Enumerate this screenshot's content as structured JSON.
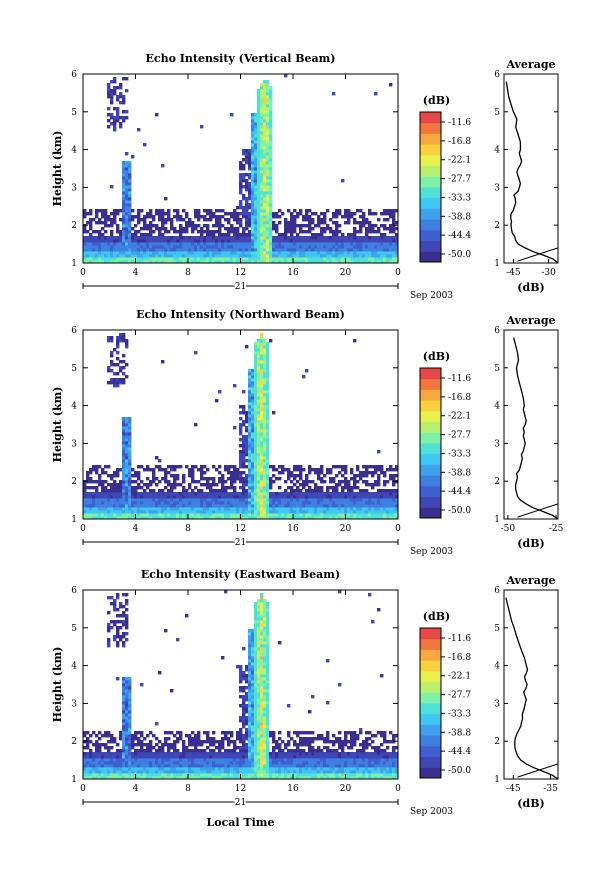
{
  "figure": {
    "date_label": "Sep 2003",
    "day_label": "21",
    "xlabel": "Local Time",
    "ylabel": "Height (km)",
    "colorbar_unit": "(dB)",
    "avg_title": "Average",
    "avg_xlabel": "(dB)"
  },
  "colorbar": {
    "ticks": [
      "-11.6",
      "-16.8",
      "-22.1",
      "-27.7",
      "-33.3",
      "-38.8",
      "-44.4",
      "-50.0"
    ],
    "colors": [
      "#3a2f8f",
      "#3f47b5",
      "#3f5fd0",
      "#3f7fe0",
      "#3fa0ee",
      "#3fc6f2",
      "#4fe0d8",
      "#7ff0a8",
      "#b8f070",
      "#e8f050",
      "#f8d040",
      "#f8a840",
      "#f07840",
      "#e84848"
    ]
  },
  "chart_data": [
    {
      "type": "heatmap",
      "title": "Echo Intensity (Vertical Beam)",
      "xlabel": "Local Time",
      "ylabel": "Height (km)",
      "xlim": [
        0,
        24
      ],
      "ylim": [
        1,
        6
      ],
      "xticks": [
        "0",
        "4",
        "8",
        "12",
        "16",
        "20",
        "0"
      ],
      "yticks": [
        "1",
        "2",
        "3",
        "4",
        "5",
        "6"
      ],
      "colorbar_label": "(dB)",
      "color_range": [
        -50.0,
        -11.6
      ],
      "features": [
        {
          "t": [
            0,
            24
          ],
          "h": [
            1.0,
            1.6
          ],
          "dB": -40
        },
        {
          "t": [
            2,
            3.5
          ],
          "h": [
            1.0,
            5.9
          ],
          "dB": -48
        },
        {
          "t": [
            12.5,
            14.6
          ],
          "h": [
            1.0,
            5.9
          ],
          "dB": -30
        }
      ],
      "average": {
        "title": "Average",
        "xlabel": "(dB)",
        "xticks": [
          "-45",
          "-30"
        ],
        "xlim": [
          -49,
          -26
        ],
        "yticks": [
          "1",
          "2",
          "3",
          "4",
          "5",
          "6"
        ],
        "ylim": [
          1,
          6
        ],
        "height_km": [
          1.0,
          1.1,
          1.2,
          1.3,
          1.4,
          1.5,
          1.6,
          1.7,
          1.8,
          1.9,
          2.0,
          2.1,
          2.2,
          2.3,
          2.4,
          2.5,
          2.6,
          2.7,
          2.8,
          2.9,
          3.0,
          3.1,
          3.2,
          3.3,
          3.4,
          3.5,
          3.6,
          3.7,
          3.8,
          3.9,
          4.0,
          4.2,
          4.4,
          4.6,
          4.8,
          5.0,
          5.2,
          5.4,
          5.6,
          5.8
        ],
        "intensity_db": [
          -26.0,
          -28.0,
          -32.0,
          -36.5,
          -40.0,
          -43.0,
          -44.0,
          -44.5,
          -45.5,
          -45.8,
          -46.0,
          -45.8,
          -46.2,
          -46.0,
          -45.0,
          -44.5,
          -44.0,
          -44.2,
          -44.8,
          -43.0,
          -42.5,
          -42.0,
          -42.5,
          -43.0,
          -43.5,
          -43.0,
          -42.0,
          -41.5,
          -42.0,
          -42.5,
          -42.0,
          -42.0,
          -43.0,
          -44.0,
          -43.5,
          -45.0,
          -46.0,
          -47.0,
          -47.5,
          -48.0
        ]
      }
    },
    {
      "type": "heatmap",
      "title": "Echo Intensity (Northward Beam)",
      "xlabel": "Local Time",
      "ylabel": "Height (km)",
      "xlim": [
        0,
        24
      ],
      "ylim": [
        1,
        6
      ],
      "xticks": [
        "0",
        "4",
        "8",
        "12",
        "16",
        "20",
        "0"
      ],
      "yticks": [
        "1",
        "2",
        "3",
        "4",
        "5",
        "6"
      ],
      "colorbar_label": "(dB)",
      "color_range": [
        -50.0,
        -11.6
      ],
      "features": [
        {
          "t": [
            0,
            24
          ],
          "h": [
            1.0,
            1.6
          ],
          "dB": -40
        },
        {
          "t": [
            2,
            3.5
          ],
          "h": [
            1.0,
            5.8
          ],
          "dB": -48
        },
        {
          "t": [
            13,
            14.8
          ],
          "h": [
            1.0,
            5.7
          ],
          "dB": -30
        }
      ],
      "average": {
        "title": "Average",
        "xlabel": "(dB)",
        "xticks": [
          "-50",
          "-25"
        ],
        "xlim": [
          -52,
          -24
        ],
        "yticks": [
          "1",
          "2",
          "3",
          "4",
          "5",
          "6"
        ],
        "ylim": [
          1,
          6
        ],
        "height_km": [
          1.0,
          1.1,
          1.2,
          1.3,
          1.4,
          1.5,
          1.6,
          1.7,
          1.8,
          1.9,
          2.0,
          2.1,
          2.2,
          2.3,
          2.4,
          2.5,
          2.6,
          2.7,
          2.8,
          2.9,
          3.0,
          3.1,
          3.2,
          3.3,
          3.4,
          3.5,
          3.6,
          3.7,
          3.8,
          3.9,
          4.0,
          4.2,
          4.4,
          4.6,
          4.8,
          5.0,
          5.2,
          5.4,
          5.6,
          5.8
        ],
        "intensity_db": [
          -24.0,
          -27.0,
          -32.0,
          -37.0,
          -40.5,
          -43.5,
          -45.0,
          -45.5,
          -46.0,
          -46.0,
          -45.5,
          -45.0,
          -45.5,
          -44.0,
          -43.5,
          -43.0,
          -42.5,
          -43.0,
          -42.0,
          -41.5,
          -41.0,
          -41.5,
          -42.0,
          -41.5,
          -42.0,
          -41.0,
          -40.5,
          -41.0,
          -41.5,
          -42.0,
          -41.5,
          -42.0,
          -43.0,
          -44.0,
          -45.0,
          -45.5,
          -44.5,
          -45.0,
          -46.0,
          -47.0
        ]
      }
    },
    {
      "type": "heatmap",
      "title": "Echo Intensity (Eastward Beam)",
      "xlabel": "Local Time",
      "ylabel": "Height (km)",
      "xlim": [
        0,
        24
      ],
      "ylim": [
        1,
        6
      ],
      "xticks": [
        "0",
        "4",
        "8",
        "12",
        "16",
        "20",
        "0"
      ],
      "yticks": [
        "1",
        "2",
        "3",
        "4",
        "5",
        "6"
      ],
      "colorbar_label": "(dB)",
      "color_range": [
        -50.0,
        -11.6
      ],
      "features": [
        {
          "t": [
            0,
            24
          ],
          "h": [
            1.0,
            1.6
          ],
          "dB": -40
        },
        {
          "t": [
            2,
            3.5
          ],
          "h": [
            1.0,
            5.8
          ],
          "dB": -48
        },
        {
          "t": [
            13,
            15
          ],
          "h": [
            1.0,
            5.7
          ],
          "dB": -30
        }
      ],
      "average": {
        "title": "Average",
        "xlabel": "(dB)",
        "xticks": [
          "-45",
          "-35"
        ],
        "xlim": [
          -47.5,
          -33
        ],
        "yticks": [
          "1",
          "2",
          "3",
          "4",
          "5",
          "6"
        ],
        "ylim": [
          1,
          6
        ],
        "height_km": [
          1.0,
          1.1,
          1.2,
          1.3,
          1.4,
          1.5,
          1.6,
          1.7,
          1.8,
          1.9,
          2.0,
          2.1,
          2.2,
          2.3,
          2.4,
          2.5,
          2.6,
          2.7,
          2.8,
          2.9,
          3.0,
          3.1,
          3.2,
          3.3,
          3.4,
          3.5,
          3.6,
          3.7,
          3.8,
          3.9,
          4.0,
          4.2,
          4.4,
          4.6,
          4.8,
          5.0,
          5.2,
          5.4,
          5.6,
          5.8
        ],
        "intensity_db": [
          -33.0,
          -34.5,
          -37.0,
          -39.5,
          -41.5,
          -43.0,
          -43.8,
          -44.2,
          -44.5,
          -44.6,
          -44.6,
          -44.4,
          -44.0,
          -43.5,
          -43.0,
          -42.8,
          -42.5,
          -42.6,
          -42.3,
          -42.0,
          -41.8,
          -41.5,
          -41.9,
          -42.2,
          -41.6,
          -41.3,
          -41.7,
          -42.0,
          -41.5,
          -41.2,
          -41.5,
          -42.0,
          -42.8,
          -43.5,
          -44.2,
          -44.8,
          -45.5,
          -46.0,
          -46.5,
          -47.0
        ]
      }
    }
  ]
}
